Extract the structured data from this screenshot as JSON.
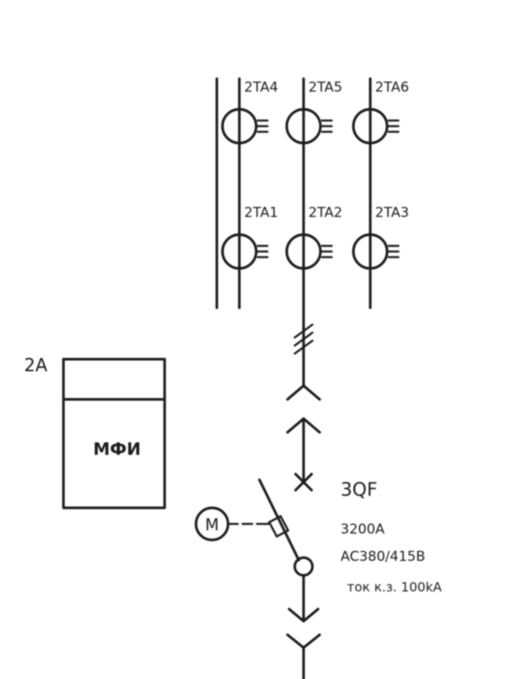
{
  "transformers_top": [
    {
      "id": "2TA4"
    },
    {
      "id": "2TA5"
    },
    {
      "id": "2TA6"
    }
  ],
  "transformers_bottom": [
    {
      "id": "2TA1"
    },
    {
      "id": "2TA2"
    },
    {
      "id": "2TA3"
    }
  ],
  "device_2a": {
    "ref": "2A",
    "name": "МФИ"
  },
  "breaker": {
    "ref": "3QF",
    "rating": "3200A",
    "voltage": "AC380/415B",
    "short_circuit": "ток к.з. 100kA"
  },
  "motor": {
    "symbol": "M"
  }
}
